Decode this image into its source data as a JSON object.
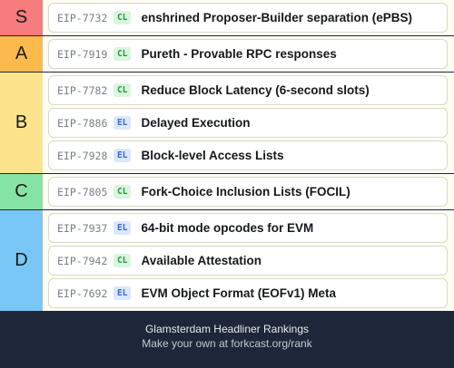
{
  "tiers": [
    {
      "label": "S",
      "color": "#f77c7d",
      "items": [
        {
          "eip": "EIP-7732",
          "layer": "CL",
          "title": "enshrined Proposer-Builder separation (ePBS)"
        }
      ]
    },
    {
      "label": "A",
      "color": "#fdba4c",
      "items": [
        {
          "eip": "EIP-7919",
          "layer": "CL",
          "title": "Pureth - Provable RPC responses"
        }
      ]
    },
    {
      "label": "B",
      "color": "#fde38b",
      "items": [
        {
          "eip": "EIP-7782",
          "layer": "CL",
          "title": "Reduce Block Latency (6-second slots)"
        },
        {
          "eip": "EIP-7886",
          "layer": "EL",
          "title": "Delayed Execution"
        },
        {
          "eip": "EIP-7928",
          "layer": "EL",
          "title": "Block-level Access Lists"
        }
      ]
    },
    {
      "label": "C",
      "color": "#86e3a6",
      "items": [
        {
          "eip": "EIP-7805",
          "layer": "CL",
          "title": "Fork-Choice Inclusion Lists (FOCIL)"
        }
      ]
    },
    {
      "label": "D",
      "color": "#79c7f6",
      "items": [
        {
          "eip": "EIP-7937",
          "layer": "EL",
          "title": "64-bit mode opcodes for EVM"
        },
        {
          "eip": "EIP-7942",
          "layer": "CL",
          "title": "Available Attestation"
        },
        {
          "eip": "EIP-7692",
          "layer": "EL",
          "title": "EVM Object Format (EOFv1) Meta"
        }
      ]
    }
  ],
  "footer": {
    "title": "Glamsterdam Headliner Rankings",
    "subtitle": "Make your own at forkcast.org/rank"
  }
}
